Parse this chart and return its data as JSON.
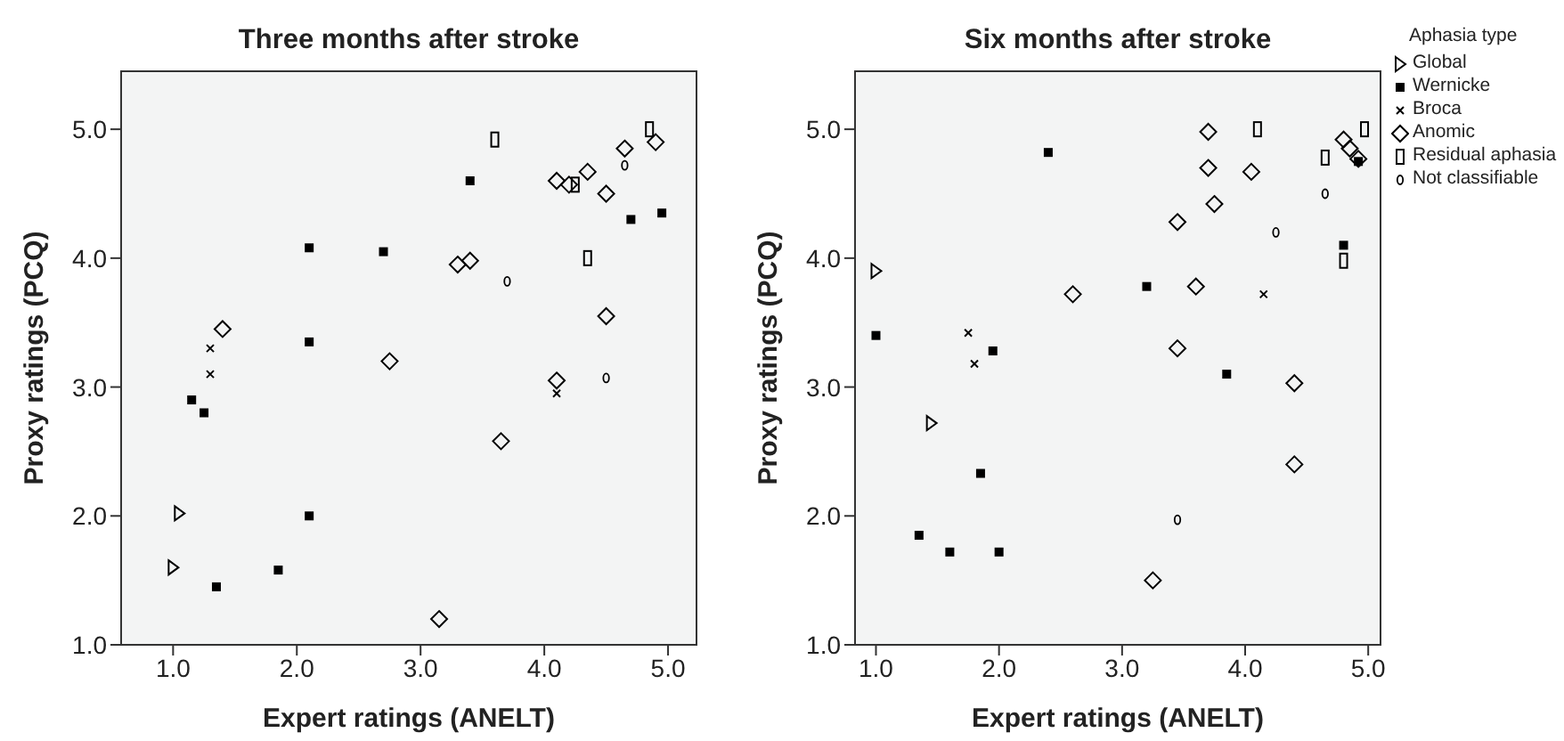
{
  "chart_data": [
    {
      "type": "scatter",
      "title": "Three months after stroke",
      "xlabel": "Expert ratings (ANELT)",
      "ylabel": "Proxy ratings (PCQ)",
      "xlim": [
        0.58,
        5.23
      ],
      "ylim": [
        1.0,
        5.45
      ],
      "xticks": [
        {
          "value": 1,
          "label": "1.0"
        },
        {
          "value": 2,
          "label": "2.0"
        },
        {
          "value": 3,
          "label": "3.0"
        },
        {
          "value": 4,
          "label": "4.0"
        },
        {
          "value": 5,
          "label": "5.0"
        }
      ],
      "yticks": [
        {
          "value": 1,
          "label": "1.0"
        },
        {
          "value": 2,
          "label": "2.0"
        },
        {
          "value": 3,
          "label": "3.0"
        },
        {
          "value": 4,
          "label": "4.0"
        },
        {
          "value": 5,
          "label": "5.0"
        }
      ],
      "grid": false,
      "legend": false,
      "series": [
        {
          "marker": "triangle",
          "color": "#000000",
          "x": [
            1.05,
            1.0
          ],
          "values": [
            2.02,
            1.6
          ]
        },
        {
          "marker": "square",
          "color": "#000000",
          "x": [
            1.15,
            1.25,
            1.35,
            1.85,
            2.1,
            2.1,
            2.1,
            2.7,
            3.4,
            4.7,
            4.95
          ],
          "values": [
            2.9,
            2.8,
            1.45,
            1.58,
            4.08,
            3.35,
            2.0,
            4.05,
            4.6,
            4.3,
            4.35
          ]
        },
        {
          "marker": "cross",
          "color": "#000000",
          "x": [
            1.3,
            1.3,
            4.1
          ],
          "values": [
            3.3,
            3.1,
            2.95
          ]
        },
        {
          "marker": "diamond",
          "color": "#000000",
          "x": [
            1.4,
            2.75,
            3.3,
            3.4,
            3.65,
            3.15,
            4.1,
            4.2,
            4.35,
            4.5,
            4.5,
            4.1,
            4.65,
            4.9
          ],
          "values": [
            3.45,
            3.2,
            3.95,
            3.98,
            2.58,
            1.2,
            4.6,
            4.57,
            4.67,
            4.5,
            3.55,
            3.05,
            4.85,
            4.9
          ]
        },
        {
          "marker": "rect",
          "color": "#000000",
          "x": [
            3.6,
            4.25,
            4.35,
            4.85
          ],
          "values": [
            4.92,
            4.57,
            4.0,
            5.0
          ]
        },
        {
          "marker": "circle",
          "color": "#000000",
          "x": [
            3.7,
            4.65,
            4.5
          ],
          "values": [
            3.82,
            4.72,
            3.07
          ]
        }
      ]
    },
    {
      "type": "scatter",
      "title": "Six months after stroke",
      "xlabel": "Expert ratings (ANELT)",
      "ylabel": "Proxy ratings (PCQ)",
      "legend_title": "Aphasia type",
      "xlim": [
        0.83,
        5.1
      ],
      "ylim": [
        1.0,
        5.45
      ],
      "xticks": [
        {
          "value": 1,
          "label": "1.0"
        },
        {
          "value": 2,
          "label": "2.0"
        },
        {
          "value": 3,
          "label": "3.0"
        },
        {
          "value": 4,
          "label": "4.0"
        },
        {
          "value": 5,
          "label": "5.0"
        }
      ],
      "yticks": [
        {
          "value": 1,
          "label": "1.0"
        },
        {
          "value": 2,
          "label": "2.0"
        },
        {
          "value": 3,
          "label": "3.0"
        },
        {
          "value": 4,
          "label": "4.0"
        },
        {
          "value": 5,
          "label": "5.0"
        }
      ],
      "grid": false,
      "legend": "right",
      "series": [
        {
          "name": "Global",
          "marker": "triangle",
          "color": "#000000",
          "x": [
            1.0,
            1.45
          ],
          "values": [
            3.9,
            2.72
          ]
        },
        {
          "name": "Wernicke",
          "marker": "square",
          "color": "#000000",
          "x": [
            1.0,
            2.4,
            1.95,
            1.85,
            1.35,
            1.6,
            2.0,
            3.2,
            3.85,
            4.8,
            4.92
          ],
          "values": [
            3.4,
            4.82,
            3.28,
            2.33,
            1.85,
            1.72,
            1.72,
            3.78,
            3.1,
            4.1,
            4.75
          ]
        },
        {
          "name": "Broca",
          "marker": "cross",
          "color": "#000000",
          "x": [
            1.75,
            1.8,
            4.15
          ],
          "values": [
            3.42,
            3.18,
            3.72
          ]
        },
        {
          "name": "Anomic",
          "marker": "diamond",
          "color": "#000000",
          "x": [
            2.6,
            3.45,
            3.7,
            3.7,
            3.75,
            4.05,
            3.6,
            3.45,
            4.4,
            4.4,
            3.25,
            4.8,
            4.85,
            4.92
          ],
          "values": [
            3.72,
            4.28,
            4.98,
            4.7,
            4.42,
            4.67,
            3.78,
            3.3,
            3.03,
            2.4,
            1.5,
            4.92,
            4.85,
            4.77
          ]
        },
        {
          "name": "Residual aphasia",
          "marker": "rect",
          "color": "#000000",
          "x": [
            4.1,
            4.65,
            4.8,
            4.97
          ],
          "values": [
            5.0,
            4.78,
            3.98,
            5.0
          ]
        },
        {
          "name": "Not classifiable",
          "marker": "circle",
          "color": "#000000",
          "x": [
            3.45,
            4.25,
            4.65
          ],
          "values": [
            1.97,
            4.2,
            4.5
          ]
        }
      ]
    }
  ]
}
